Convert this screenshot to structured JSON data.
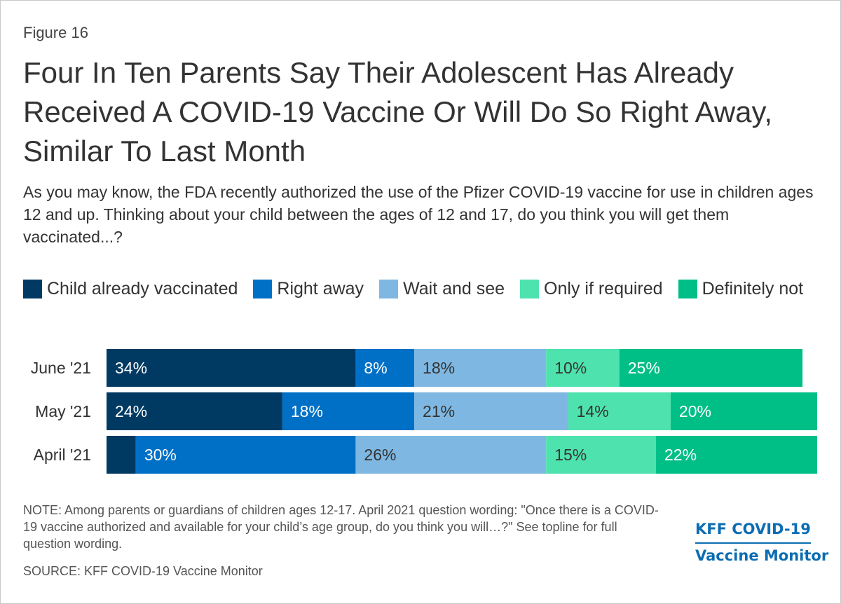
{
  "figure_label": "Figure 16",
  "title": "Four In Ten Parents Say Their Adolescent Has Already Received A COVID-19 Vaccine Or Will Do So Right Away, Similar To Last Month",
  "subtitle": "As you may know, the FDA recently authorized the use of the Pfizer COVID-19 vaccine for use in children ages 12 and up. Thinking about your child between the ages of 12 and 17, do you think you will get them vaccinated...?",
  "chart_data": {
    "type": "bar",
    "orientation": "horizontal",
    "stacked": true,
    "categories": [
      "June '21",
      "May '21",
      "April '21"
    ],
    "series": [
      {
        "name": "Child already vaccinated",
        "color": "#003a63",
        "values": [
          34,
          24,
          4
        ],
        "labels": [
          "34%",
          "24%",
          ""
        ]
      },
      {
        "name": "Right away",
        "color": "#0070c6",
        "values": [
          8,
          18,
          30
        ],
        "labels": [
          "8%",
          "18%",
          "30%"
        ]
      },
      {
        "name": "Wait and see",
        "color": "#7eb8e2",
        "values": [
          18,
          21,
          26
        ],
        "labels": [
          "18%",
          "21%",
          "26%"
        ]
      },
      {
        "name": "Only if required",
        "color": "#4ee2ae",
        "values": [
          10,
          14,
          15
        ],
        "labels": [
          "10%",
          "14%",
          "15%"
        ]
      },
      {
        "name": "Definitely not",
        "color": "#00bf86",
        "values": [
          25,
          20,
          22
        ],
        "labels": [
          "25%",
          "20%",
          "22%"
        ]
      }
    ],
    "xlim": [
      0,
      100
    ],
    "legend_position": "top"
  },
  "note": "NOTE: Among parents or guardians of children ages 12-17. April 2021 question wording: \"Once there is a COVID-19 vaccine authorized and available for your child’s age group, do you think you will…?\" See topline for full question wording.",
  "source": "SOURCE: KFF COVID-19 Vaccine Monitor",
  "logo": {
    "line1": "KFF COVID-19",
    "line2": "Vaccine Monitor"
  }
}
